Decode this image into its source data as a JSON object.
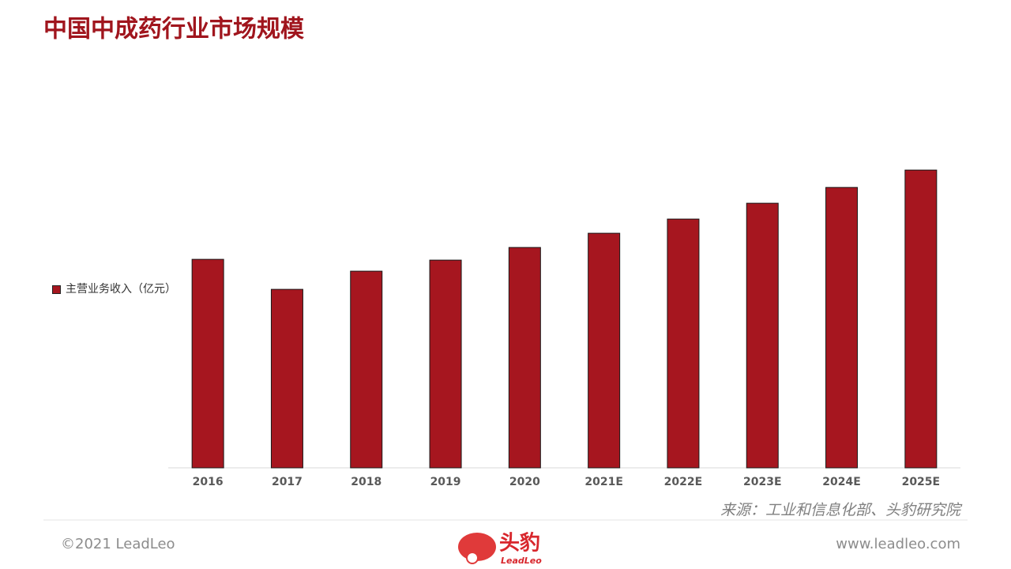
{
  "chart_data": {
    "type": "bar",
    "title": "中国中成药行业市场规模",
    "categories": [
      "2016",
      "2017",
      "2018",
      "2019",
      "2020",
      "2021E",
      "2022E",
      "2023E",
      "2024E",
      "2025E"
    ],
    "series": [
      {
        "name": "主营业务收入（亿元）",
        "color": "#a6161f",
        "values": [
          6697,
          5733,
          6317,
          6672,
          7078,
          7535,
          7991,
          8499,
          9006,
          9564
        ]
      }
    ],
    "ylim": [
      0,
      10000
    ],
    "legend": "left",
    "source": "来源：工业和信息化部、头豹研究院"
  },
  "footer": {
    "copyright": "©2021 LeadLeo",
    "logo": "头豹",
    "logo_sub": "LeadLeo",
    "website": "www.leadleo.com"
  }
}
